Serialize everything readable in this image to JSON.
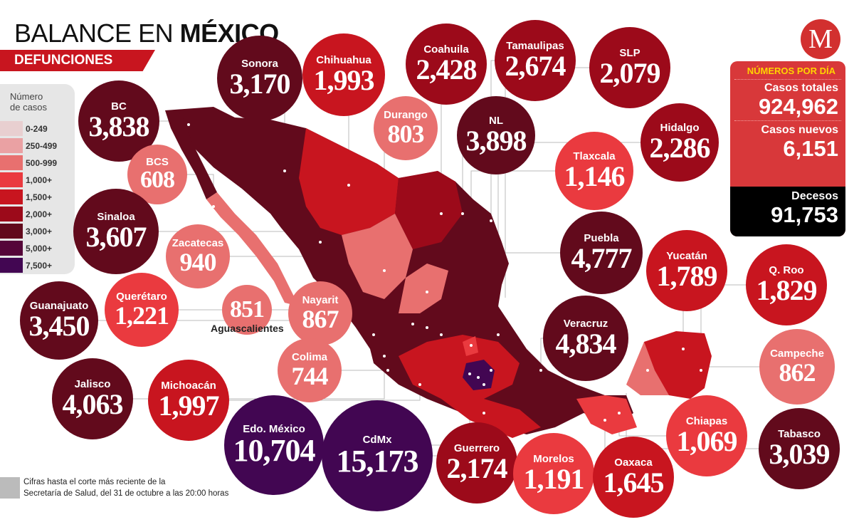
{
  "header": {
    "title_light": "BALANCE EN ",
    "title_bold": "MÉXICO",
    "subtitle": "DEFUNCIONES"
  },
  "logo": {
    "letter": "M",
    "mark": "®"
  },
  "legend": {
    "title_line1": "Número",
    "title_line2": "de casos",
    "ranges": [
      {
        "label": "0-249",
        "min": 0,
        "color": "#e8cfd0"
      },
      {
        "label": "250-499",
        "min": 250,
        "color": "#eaa1a3"
      },
      {
        "label": "500-999",
        "min": 500,
        "color": "#e8706f"
      },
      {
        "label": "1,000+",
        "min": 1000,
        "color": "#ea3a3f"
      },
      {
        "label": "1,500+",
        "min": 1500,
        "color": "#c8151f"
      },
      {
        "label": "2,000+",
        "min": 2000,
        "color": "#9c0a1a"
      },
      {
        "label": "3,000+",
        "min": 3000,
        "color": "#620a1c"
      },
      {
        "label": "5,000+",
        "min": 5000,
        "color": "#550539"
      },
      {
        "label": "7,500+",
        "min": 7500,
        "color": "#420652"
      }
    ]
  },
  "daily": {
    "title": "NÚMEROS POR DÍA",
    "total_label": "Casos totales",
    "total_value": "924,962",
    "new_label": "Casos nuevos",
    "new_value": "6,151",
    "deaths_label": "Decesos",
    "deaths_value": "91,753"
  },
  "states": [
    {
      "name": "Sonora",
      "value": 3170
    },
    {
      "name": "Chihuahua",
      "value": 1993
    },
    {
      "name": "Coahuila",
      "value": 2428
    },
    {
      "name": "Tamaulipas",
      "value": 2674
    },
    {
      "name": "SLP",
      "value": 2079
    },
    {
      "name": "BC",
      "value": 3838
    },
    {
      "name": "Durango",
      "value": 803
    },
    {
      "name": "NL",
      "value": 3898
    },
    {
      "name": "Tlaxcala",
      "value": 1146
    },
    {
      "name": "Hidalgo",
      "value": 2286
    },
    {
      "name": "BCS",
      "value": 608
    },
    {
      "name": "Sinaloa",
      "value": 3607
    },
    {
      "name": "Zacatecas",
      "value": 940
    },
    {
      "name": "Puebla",
      "value": 4777
    },
    {
      "name": "Yucatán",
      "value": 1789
    },
    {
      "name": "Q. Roo",
      "value": 1829
    },
    {
      "name": "Querétaro",
      "value": 1221
    },
    {
      "name": "",
      "value": 851
    },
    {
      "name": "Nayarit",
      "value": 867
    },
    {
      "name": "Guanajuato",
      "value": 3450
    },
    {
      "name": "Veracruz",
      "value": 4834
    },
    {
      "name": "Campeche",
      "value": 862
    },
    {
      "name": "Colima",
      "value": 744
    },
    {
      "name": "Jalisco",
      "value": 4063
    },
    {
      "name": "Michoacán",
      "value": 1997
    },
    {
      "name": "Edo. México",
      "value": 10704
    },
    {
      "name": "CdMx",
      "value": 15173
    },
    {
      "name": "Guerrero",
      "value": 2174
    },
    {
      "name": "Morelos",
      "value": 1191
    },
    {
      "name": "Oaxaca",
      "value": 1645
    },
    {
      "name": "Chiapas",
      "value": 1069
    },
    {
      "name": "Tabasco",
      "value": 3039
    }
  ],
  "aguascalientes_label": "Aguascalientes",
  "footer": {
    "line1": "Cifras hasta el corte más reciente de la",
    "line2": "Secretaría de Salud, del 31 de octubre a las 20:00 horas"
  }
}
